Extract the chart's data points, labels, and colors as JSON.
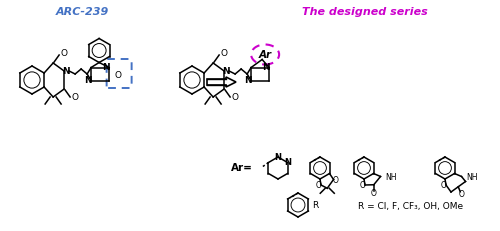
{
  "title_left": "ARC-239",
  "title_left_color": "#4472C4",
  "title_right": "The designed series",
  "title_right_color": "#CC00CC",
  "ar_label": "Ar",
  "r_label": "R = Cl, F, CF₃, OH, OMe",
  "ar_prefix": "Ar=",
  "background_color": "#ffffff",
  "fig_width": 5.0,
  "fig_height": 2.31,
  "dpi": 100
}
